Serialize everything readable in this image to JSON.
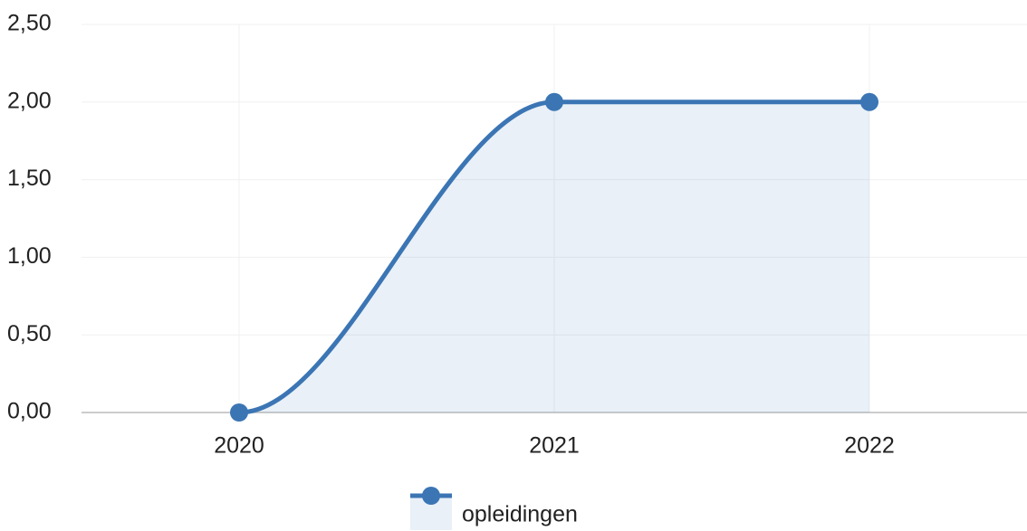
{
  "chart_data": {
    "type": "line",
    "categories": [
      "2020",
      "2021",
      "2022"
    ],
    "series": [
      {
        "name": "opleidingen",
        "color": "#3b75b4",
        "values": [
          0,
          2,
          2
        ]
      }
    ],
    "ylim": [
      0,
      2.5
    ],
    "yticks": [
      {
        "value": 0,
        "label": "0,00"
      },
      {
        "value": 0.5,
        "label": "0,50"
      },
      {
        "value": 1,
        "label": "1,00"
      },
      {
        "value": 1.5,
        "label": "1,50"
      },
      {
        "value": 2,
        "label": "2,00"
      },
      {
        "value": 2.5,
        "label": "2,50"
      }
    ],
    "grid": true,
    "area": true,
    "smooth": true,
    "legend": "bottom"
  }
}
